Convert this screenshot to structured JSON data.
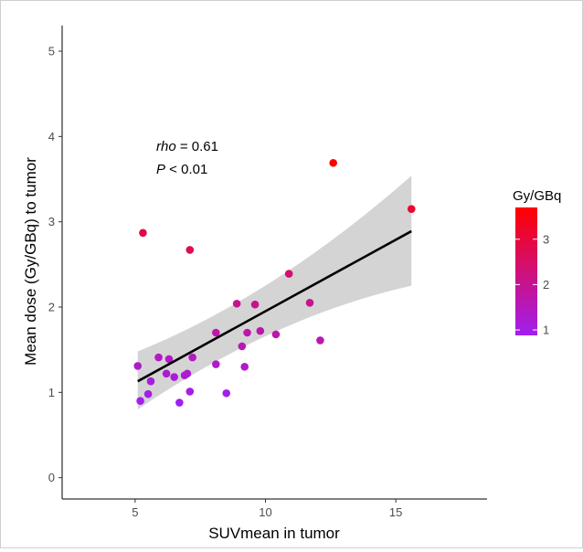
{
  "chart_data": {
    "type": "scatter",
    "title": "",
    "xlabel": "SUVmean in tumor",
    "ylabel": "Mean dose (Gy/GBq) to tumor",
    "xlim": [
      2.2,
      18.5
    ],
    "ylim": [
      -0.25,
      5.3
    ],
    "xticks": [
      5,
      10,
      15
    ],
    "yticks": [
      0,
      1,
      2,
      3,
      4,
      5
    ],
    "grid": false,
    "annotation": {
      "stat_label": "rho",
      "stat_rest": " = 0.61",
      "p_label": "P",
      "p_rest": " < 0.01"
    },
    "legend": {
      "title": "Gy/GBq",
      "position": "right",
      "ticks": [
        1,
        2,
        3
      ],
      "range": [
        0.88,
        3.7
      ],
      "low_color": "#a020f0",
      "high_color": "#ff0000"
    },
    "fit": {
      "method": "linear",
      "x_range": [
        5.1,
        15.6
      ],
      "y_at_start": 1.13,
      "y_at_end": 2.89,
      "ci_lower": [
        0.8,
        2.25
      ],
      "ci_upper": [
        1.48,
        3.54
      ],
      "ci_color": "#d4d4d4",
      "line_color": "#000000"
    },
    "points": [
      {
        "x": 5.3,
        "y": 2.87
      },
      {
        "x": 7.1,
        "y": 2.67
      },
      {
        "x": 12.6,
        "y": 3.69
      },
      {
        "x": 15.6,
        "y": 3.15
      },
      {
        "x": 10.9,
        "y": 2.39
      },
      {
        "x": 8.9,
        "y": 2.04
      },
      {
        "x": 9.6,
        "y": 2.03
      },
      {
        "x": 11.7,
        "y": 2.05
      },
      {
        "x": 8.1,
        "y": 1.7
      },
      {
        "x": 9.3,
        "y": 1.7
      },
      {
        "x": 9.8,
        "y": 1.72
      },
      {
        "x": 10.4,
        "y": 1.68
      },
      {
        "x": 12.1,
        "y": 1.61
      },
      {
        "x": 9.1,
        "y": 1.54
      },
      {
        "x": 5.9,
        "y": 1.41
      },
      {
        "x": 6.3,
        "y": 1.39
      },
      {
        "x": 7.2,
        "y": 1.41
      },
      {
        "x": 5.1,
        "y": 1.31
      },
      {
        "x": 8.1,
        "y": 1.33
      },
      {
        "x": 9.2,
        "y": 1.3
      },
      {
        "x": 6.2,
        "y": 1.22
      },
      {
        "x": 6.5,
        "y": 1.18
      },
      {
        "x": 6.9,
        "y": 1.2
      },
      {
        "x": 7.0,
        "y": 1.22
      },
      {
        "x": 5.6,
        "y": 1.13
      },
      {
        "x": 7.1,
        "y": 1.01
      },
      {
        "x": 5.5,
        "y": 0.98
      },
      {
        "x": 8.5,
        "y": 0.99
      },
      {
        "x": 5.2,
        "y": 0.9
      },
      {
        "x": 6.7,
        "y": 0.88
      }
    ]
  }
}
